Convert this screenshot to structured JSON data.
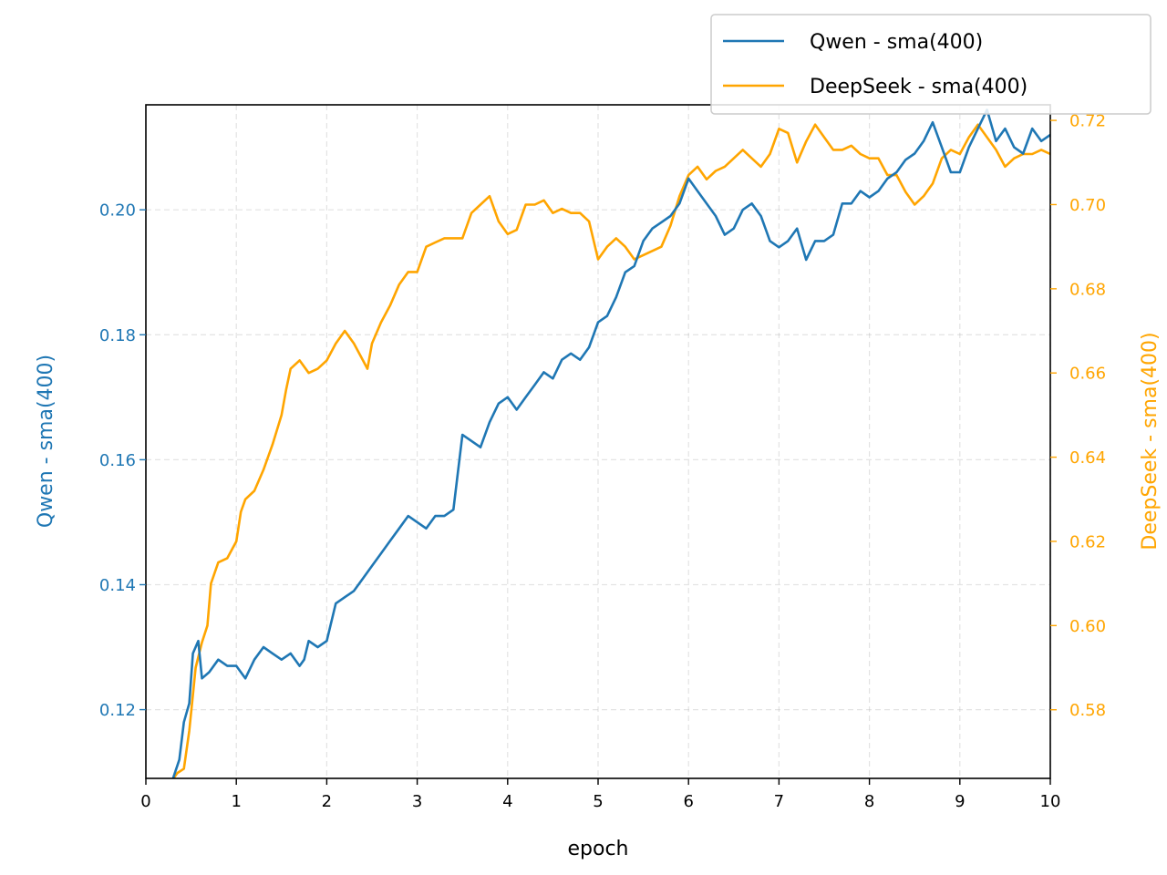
{
  "chart_data": {
    "type": "line",
    "xlabel": "epoch",
    "y_left_label": "Qwen - sma(400)",
    "y_right_label": "DeepSeek - sma(400)",
    "xlim": [
      0,
      10
    ],
    "ylim_left": [
      0.109,
      0.2168
    ],
    "ylim_right": [
      0.5637,
      0.7237
    ],
    "x_ticks": [
      0,
      1,
      2,
      3,
      4,
      5,
      6,
      7,
      8,
      9,
      10
    ],
    "x_tick_labels": [
      "0",
      "1",
      "2",
      "3",
      "4",
      "5",
      "6",
      "7",
      "8",
      "9",
      "10"
    ],
    "y_left_ticks": [
      0.12,
      0.14,
      0.16,
      0.18,
      0.2
    ],
    "y_left_tick_labels": [
      "0.12",
      "0.14",
      "0.16",
      "0.18",
      "0.20"
    ],
    "y_right_ticks": [
      0.58,
      0.6,
      0.62,
      0.64,
      0.66,
      0.68,
      0.7,
      0.72
    ],
    "y_right_tick_labels": [
      "0.58",
      "0.60",
      "0.62",
      "0.64",
      "0.66",
      "0.68",
      "0.70",
      "0.72"
    ],
    "grid": true,
    "legend_position": "top-right",
    "colors": {
      "qwen": "#1f77b4",
      "deepseek": "#ffa500"
    },
    "series": [
      {
        "name": "Qwen - sma(400)",
        "axis": "left",
        "x": [
          0.3,
          0.37,
          0.42,
          0.48,
          0.52,
          0.58,
          0.62,
          0.7,
          0.8,
          0.9,
          1.0,
          1.1,
          1.2,
          1.3,
          1.4,
          1.5,
          1.6,
          1.7,
          1.75,
          1.8,
          1.9,
          2.0,
          2.1,
          2.2,
          2.3,
          2.4,
          2.5,
          2.6,
          2.7,
          2.8,
          2.9,
          3.0,
          3.1,
          3.2,
          3.3,
          3.4,
          3.5,
          3.6,
          3.7,
          3.8,
          3.9,
          4.0,
          4.1,
          4.2,
          4.3,
          4.4,
          4.5,
          4.6,
          4.7,
          4.8,
          4.9,
          5.0,
          5.1,
          5.2,
          5.3,
          5.4,
          5.5,
          5.6,
          5.7,
          5.8,
          5.9,
          6.0,
          6.1,
          6.2,
          6.3,
          6.4,
          6.5,
          6.6,
          6.7,
          6.8,
          6.9,
          7.0,
          7.1,
          7.2,
          7.3,
          7.4,
          7.5,
          7.6,
          7.7,
          7.8,
          7.9,
          8.0,
          8.1,
          8.2,
          8.3,
          8.4,
          8.5,
          8.6,
          8.7,
          8.8,
          8.9,
          9.0,
          9.1,
          9.2,
          9.3,
          9.4,
          9.5,
          9.6,
          9.7,
          9.8,
          9.9,
          10.0
        ],
        "y": [
          0.109,
          0.112,
          0.118,
          0.121,
          0.129,
          0.131,
          0.125,
          0.126,
          0.128,
          0.127,
          0.127,
          0.125,
          0.128,
          0.13,
          0.129,
          0.128,
          0.129,
          0.127,
          0.128,
          0.131,
          0.13,
          0.131,
          0.137,
          0.138,
          0.139,
          0.141,
          0.143,
          0.145,
          0.147,
          0.149,
          0.151,
          0.15,
          0.149,
          0.151,
          0.151,
          0.152,
          0.164,
          0.163,
          0.162,
          0.166,
          0.169,
          0.17,
          0.168,
          0.17,
          0.172,
          0.174,
          0.173,
          0.176,
          0.177,
          0.176,
          0.178,
          0.182,
          0.183,
          0.186,
          0.19,
          0.191,
          0.195,
          0.197,
          0.198,
          0.199,
          0.201,
          0.205,
          0.203,
          0.201,
          0.199,
          0.196,
          0.197,
          0.2,
          0.201,
          0.199,
          0.195,
          0.194,
          0.195,
          0.197,
          0.192,
          0.195,
          0.195,
          0.196,
          0.201,
          0.201,
          0.203,
          0.202,
          0.203,
          0.205,
          0.206,
          0.208,
          0.209,
          0.211,
          0.214,
          0.21,
          0.206,
          0.206,
          0.21,
          0.213,
          0.216,
          0.211,
          0.213,
          0.21,
          0.209,
          0.213,
          0.211,
          0.212
        ]
      },
      {
        "name": "DeepSeek - sma(400)",
        "axis": "right",
        "x": [
          0.28,
          0.35,
          0.42,
          0.48,
          0.55,
          0.62,
          0.68,
          0.72,
          0.8,
          0.9,
          1.0,
          1.05,
          1.1,
          1.2,
          1.3,
          1.4,
          1.5,
          1.55,
          1.6,
          1.7,
          1.8,
          1.9,
          2.0,
          2.1,
          2.2,
          2.3,
          2.4,
          2.45,
          2.5,
          2.6,
          2.7,
          2.8,
          2.9,
          3.0,
          3.1,
          3.2,
          3.3,
          3.4,
          3.5,
          3.6,
          3.7,
          3.8,
          3.9,
          4.0,
          4.1,
          4.2,
          4.3,
          4.4,
          4.5,
          4.6,
          4.7,
          4.8,
          4.9,
          5.0,
          5.1,
          5.2,
          5.3,
          5.4,
          5.5,
          5.6,
          5.7,
          5.8,
          5.9,
          6.0,
          6.1,
          6.2,
          6.3,
          6.4,
          6.5,
          6.6,
          6.7,
          6.8,
          6.9,
          7.0,
          7.1,
          7.2,
          7.3,
          7.4,
          7.5,
          7.6,
          7.7,
          7.8,
          7.9,
          8.0,
          8.1,
          8.2,
          8.3,
          8.4,
          8.5,
          8.6,
          8.7,
          8.8,
          8.9,
          9.0,
          9.1,
          9.2,
          9.3,
          9.4,
          9.5,
          9.6,
          9.7,
          9.8,
          9.9,
          10.0
        ],
        "y": [
          0.563,
          0.565,
          0.566,
          0.575,
          0.59,
          0.596,
          0.6,
          0.61,
          0.615,
          0.616,
          0.62,
          0.627,
          0.63,
          0.632,
          0.637,
          0.643,
          0.65,
          0.656,
          0.661,
          0.663,
          0.66,
          0.661,
          0.663,
          0.667,
          0.67,
          0.667,
          0.663,
          0.661,
          0.667,
          0.672,
          0.676,
          0.681,
          0.684,
          0.684,
          0.69,
          0.691,
          0.692,
          0.692,
          0.692,
          0.698,
          0.7,
          0.702,
          0.696,
          0.693,
          0.694,
          0.7,
          0.7,
          0.701,
          0.698,
          0.699,
          0.698,
          0.698,
          0.696,
          0.687,
          0.69,
          0.692,
          0.69,
          0.687,
          0.688,
          0.689,
          0.69,
          0.695,
          0.702,
          0.707,
          0.709,
          0.706,
          0.708,
          0.709,
          0.711,
          0.713,
          0.711,
          0.709,
          0.712,
          0.718,
          0.717,
          0.71,
          0.715,
          0.719,
          0.716,
          0.713,
          0.713,
          0.714,
          0.712,
          0.711,
          0.711,
          0.707,
          0.707,
          0.703,
          0.7,
          0.702,
          0.705,
          0.711,
          0.713,
          0.712,
          0.716,
          0.719,
          0.716,
          0.713,
          0.709,
          0.711,
          0.712,
          0.712,
          0.713,
          0.712
        ]
      }
    ]
  }
}
